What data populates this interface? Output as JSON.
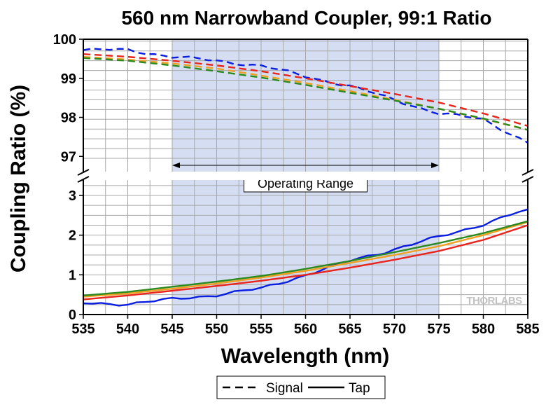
{
  "chart_data": {
    "type": "line",
    "title": "560 nm Narrowband Coupler, 99:1 Ratio",
    "xlabel": "Wavelength (nm)",
    "ylabel": "Coupling Ratio (%)",
    "xlim": [
      535,
      585
    ],
    "x_ticks": [
      "535",
      "540",
      "545",
      "550",
      "555",
      "560",
      "565",
      "570",
      "575",
      "580",
      "585"
    ],
    "upper_panel": {
      "ylim": [
        96.7,
        100
      ],
      "y_ticks": [
        "97",
        "98",
        "99",
        "100"
      ]
    },
    "lower_panel": {
      "ylim": [
        0,
        3.3
      ],
      "y_ticks": [
        "0",
        "1",
        "2",
        "3"
      ]
    },
    "axis_break": true,
    "grid": true,
    "operating_range": {
      "label": "Operating Range",
      "x": [
        545,
        575
      ],
      "shade_color": "#d4ddf2"
    },
    "watermark": "THORLABS",
    "legend": {
      "placement": "bottom-center",
      "entries": [
        {
          "label": "Signal",
          "style": "dashed"
        },
        {
          "label": "Tap",
          "style": "solid"
        }
      ]
    },
    "x": [
      535,
      540,
      545,
      550,
      555,
      560,
      565,
      570,
      575,
      580,
      585
    ],
    "series": [
      {
        "group": "signal",
        "color": "#0a1ee0",
        "style": "dashed",
        "values": [
          99.72,
          99.73,
          99.55,
          99.45,
          99.32,
          99.05,
          98.8,
          98.45,
          98.1,
          97.95,
          97.35
        ]
      },
      {
        "group": "signal",
        "color": "#e8241c",
        "style": "dashed",
        "values": [
          99.62,
          99.55,
          99.45,
          99.33,
          99.18,
          99.0,
          98.8,
          98.6,
          98.38,
          98.1,
          97.78
        ]
      },
      {
        "group": "signal",
        "color": "#f0a020",
        "style": "dashed",
        "values": [
          99.55,
          99.48,
          99.38,
          99.25,
          99.07,
          98.88,
          98.67,
          98.45,
          98.22,
          97.96,
          97.68
        ]
      },
      {
        "group": "signal",
        "color": "#2a8a20",
        "style": "dashed",
        "values": [
          99.52,
          99.45,
          99.33,
          99.18,
          99.02,
          98.83,
          98.63,
          98.43,
          98.22,
          97.97,
          97.68
        ]
      },
      {
        "group": "tap",
        "color": "#0a1ee0",
        "style": "solid",
        "values": [
          0.28,
          0.27,
          0.38,
          0.5,
          0.65,
          1.0,
          1.35,
          1.65,
          1.95,
          2.28,
          2.65
        ]
      },
      {
        "group": "tap",
        "color": "#e8241c",
        "style": "solid",
        "values": [
          0.38,
          0.48,
          0.6,
          0.72,
          0.85,
          1.0,
          1.18,
          1.38,
          1.6,
          1.88,
          2.25
        ]
      },
      {
        "group": "tap",
        "color": "#f0a020",
        "style": "solid",
        "values": [
          0.45,
          0.53,
          0.65,
          0.78,
          0.93,
          1.1,
          1.3,
          1.5,
          1.72,
          2.0,
          2.33
        ]
      },
      {
        "group": "tap",
        "color": "#2a8a20",
        "style": "solid",
        "values": [
          0.48,
          0.57,
          0.7,
          0.83,
          0.97,
          1.15,
          1.35,
          1.57,
          1.8,
          2.05,
          2.35
        ]
      }
    ]
  }
}
